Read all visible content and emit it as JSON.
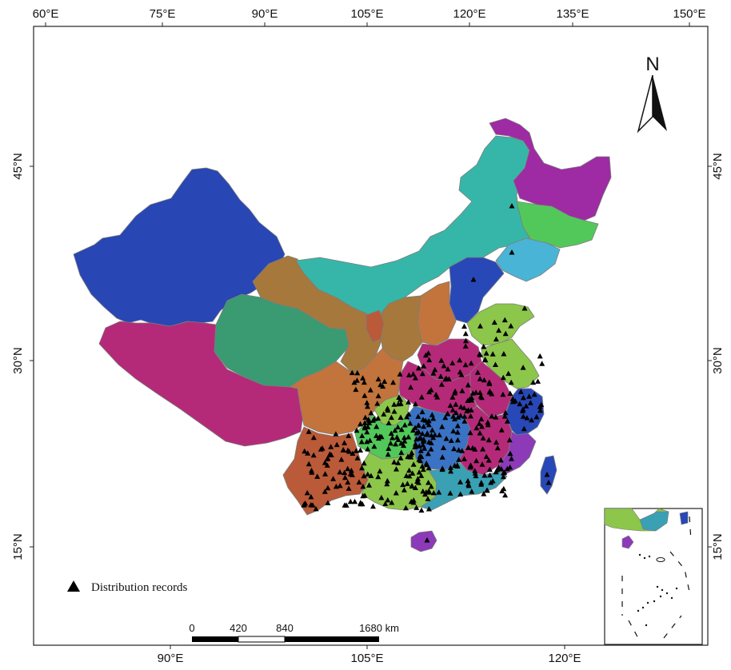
{
  "top_axis_labels": [
    "60°E",
    "75°E",
    "90°E",
    "105°E",
    "120°E",
    "135°E",
    "150°E"
  ],
  "bottom_axis_labels": [
    "90°E",
    "105°E",
    "120°E"
  ],
  "left_axis_labels": [
    "45°N",
    "30°N",
    "15°N"
  ],
  "right_axis_labels": [
    "45°N",
    "30°N",
    "15°N"
  ],
  "north_arrow": {
    "label": "N"
  },
  "scale_bar": {
    "ticks": [
      "0",
      "420",
      "840",
      "1680 km"
    ]
  },
  "legend": {
    "label": "Distribution records",
    "symbol": "black-triangle"
  },
  "colors": {
    "xinjiang": "#2846b4",
    "tibet": "#b42a78",
    "qinghai": "#3a9a72",
    "inner_mongolia": "#36b6a8",
    "heilongjiang": "#9e2aa4",
    "jilin": "#52c85a",
    "liaoning": "#4ab4d6",
    "gansu": "#a6783c",
    "sichuan": "#c2743c",
    "yunnan": "#ba5a38",
    "guangxi": "#8cc64a",
    "guangdong": "#3aa0b4",
    "hunan": "#3a72c4",
    "fujian": "#8c3ab8",
    "zhejiang": "#2848b8",
    "taiwan": "#2848b8",
    "hainan": "#8c3ab8",
    "marker": "#000000"
  }
}
